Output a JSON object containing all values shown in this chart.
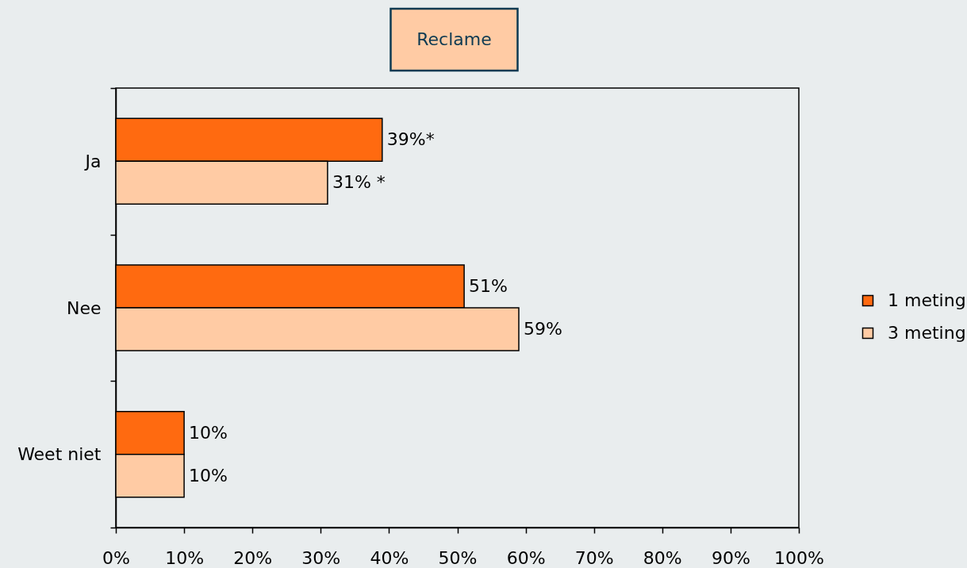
{
  "chart_data": {
    "type": "bar",
    "orientation": "horizontal",
    "title": "Reclame",
    "categories": [
      "Ja",
      "Nee",
      "Weet niet"
    ],
    "series": [
      {
        "name": "1 meting",
        "color": "#ff6a10",
        "values": [
          39,
          51,
          10
        ],
        "value_labels": [
          "39%*",
          "51%",
          "10%"
        ]
      },
      {
        "name": "3 meting",
        "color": "#ffcba4",
        "values": [
          31,
          59,
          10
        ],
        "value_labels": [
          "31% *",
          "59%",
          "10%"
        ]
      }
    ],
    "xlim": [
      0,
      100
    ],
    "xticks": [
      {
        "value": 0,
        "label": "0%"
      },
      {
        "value": 10,
        "label": "10%"
      },
      {
        "value": 20,
        "label": "20%"
      },
      {
        "value": 30,
        "label": "30%"
      },
      {
        "value": 40,
        "label": "40%"
      },
      {
        "value": 50,
        "label": "50%"
      },
      {
        "value": 60,
        "label": "60%"
      },
      {
        "value": 70,
        "label": "70%"
      },
      {
        "value": 80,
        "label": "80%"
      },
      {
        "value": 90,
        "label": "90%"
      },
      {
        "value": 100,
        "label": "100%"
      }
    ],
    "legend": "right"
  }
}
